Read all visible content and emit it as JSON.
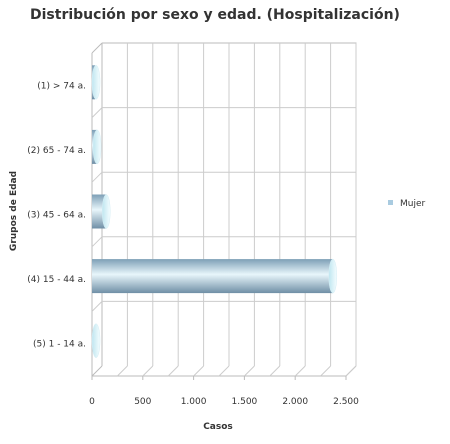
{
  "chart_data": {
    "type": "bar",
    "orientation": "horizontal",
    "title": "Distribución por sexo y edad. (Hospitalización)",
    "xlabel": "Casos",
    "ylabel": "Grupos de Edad",
    "categories": [
      "(1) > 74 a.",
      "(2) 65 - 74 a.",
      "(3) 45 - 64 a.",
      "(4) 15 - 44 a.",
      "(5) 1 - 14 a."
    ],
    "series": [
      {
        "name": "Mujer",
        "values": [
          30,
          50,
          140,
          2370,
          5
        ],
        "color": "#8fb3c9"
      }
    ],
    "xlim": [
      0,
      2500
    ],
    "xticks": [
      0,
      500,
      1000,
      1500,
      2000,
      2500
    ],
    "xtick_labels": [
      "0",
      "500",
      "1.000",
      "1.500",
      "2.000",
      "2.500"
    ],
    "grid": true,
    "legend_position": "right"
  }
}
